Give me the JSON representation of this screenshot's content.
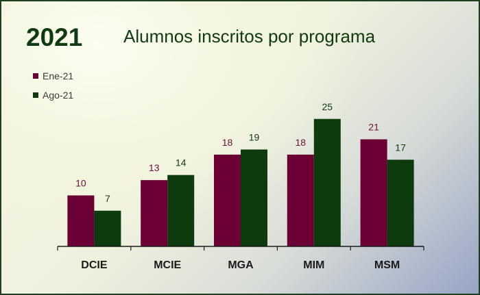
{
  "chart_data": {
    "type": "bar",
    "title": "Alumnos inscritos por programa",
    "subtitle": "2021",
    "categories": [
      "DCIE",
      "MCIE",
      "MGA",
      "MIM",
      "MSM"
    ],
    "series": [
      {
        "name": "Ene-21",
        "values": [
          10,
          13,
          18,
          18,
          21
        ],
        "color": "#6b0034"
      },
      {
        "name": "Ago-21",
        "values": [
          7,
          14,
          19,
          25,
          17
        ],
        "color": "#0d3b0d"
      }
    ],
    "ylim": [
      0,
      25
    ],
    "grid": false,
    "legend_placement": "top-left",
    "label_colors": [
      "#6b0f3c",
      "#0f3a12"
    ]
  }
}
